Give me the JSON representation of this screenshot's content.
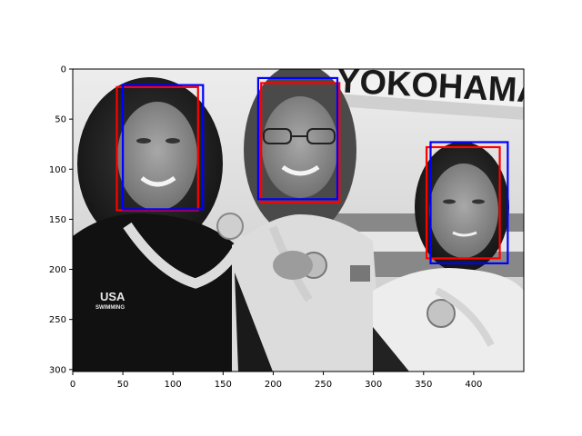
{
  "chart_data": {
    "type": "image-with-boxes",
    "title": "",
    "xlabel": "",
    "ylabel": "",
    "xlim": [
      0,
      450
    ],
    "ylim": [
      0,
      302
    ],
    "y_inverted": true,
    "xticks": [
      0,
      50,
      100,
      150,
      200,
      250,
      300,
      350,
      400
    ],
    "yticks": [
      0,
      50,
      100,
      150,
      200,
      250,
      300
    ],
    "xtick_labels": [
      "0",
      "50",
      "100",
      "150",
      "200",
      "250",
      "300",
      "350",
      "400"
    ],
    "ytick_labels": [
      "0",
      "50",
      "100",
      "150",
      "200",
      "250",
      "300"
    ],
    "series": [
      {
        "name": "red boxes",
        "color": "#ff0000",
        "boxes": [
          {
            "x0": 44,
            "y0": 18,
            "x1": 125,
            "y1": 141
          },
          {
            "x0": 188,
            "y0": 14,
            "x1": 266,
            "y1": 133
          },
          {
            "x0": 353,
            "y0": 78,
            "x1": 426,
            "y1": 189
          }
        ]
      },
      {
        "name": "blue boxes",
        "color": "#0000ff",
        "boxes": [
          {
            "x0": 50,
            "y0": 16,
            "x1": 130,
            "y1": 140
          },
          {
            "x0": 185,
            "y0": 9,
            "x1": 264,
            "y1": 130
          },
          {
            "x0": 357,
            "y0": 73,
            "x1": 434,
            "y1": 194
          }
        ]
      }
    ],
    "background_text": {
      "banner": "YOKOHAMA",
      "jacket_logo": "USA",
      "jacket_sub": "SWIMMING"
    }
  }
}
